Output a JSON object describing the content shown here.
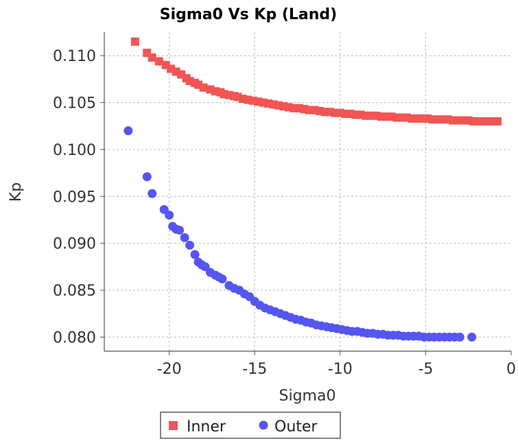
{
  "chart_data": {
    "type": "scatter",
    "title": "Sigma0 Vs Kp (Land)",
    "xlabel": "Sigma0",
    "ylabel": "Kp",
    "xlim": [
      -23.8,
      0
    ],
    "ylim": [
      0.0785,
      0.1125
    ],
    "xticks": [
      -20,
      -15,
      -10,
      -5,
      0
    ],
    "xtick_labels": [
      "-20",
      "-15",
      "-10",
      "-5",
      "0"
    ],
    "yticks": [
      0.08,
      0.085,
      0.09,
      0.095,
      0.1,
      0.105,
      0.11
    ],
    "ytick_labels": [
      "0.080",
      "0.085",
      "0.090",
      "0.095",
      "0.100",
      "0.105",
      "0.110"
    ],
    "grid": true,
    "legend_position": "bottom-center",
    "series": [
      {
        "name": "Inner",
        "marker": "square",
        "color": "#F25454",
        "x": [
          -22.0,
          -21.3,
          -21.0,
          -20.6,
          -20.2,
          -19.9,
          -19.6,
          -19.3,
          -19.0,
          -18.8,
          -18.5,
          -18.3,
          -18.0,
          -17.6,
          -17.3,
          -17.0,
          -16.8,
          -16.5,
          -16.2,
          -16.0,
          -15.7,
          -15.4,
          -15.1,
          -14.8,
          -14.5,
          -14.2,
          -13.9,
          -13.6,
          -13.3,
          -13.0,
          -12.7,
          -12.4,
          -12.1,
          -11.8,
          -11.5,
          -11.2,
          -10.9,
          -10.6,
          -10.3,
          -10.0,
          -9.7,
          -9.4,
          -9.1,
          -8.8,
          -8.5,
          -8.2,
          -7.9,
          -7.6,
          -7.3,
          -7.0,
          -6.7,
          -6.4,
          -6.1,
          -5.8,
          -5.5,
          -5.2,
          -4.9,
          -4.6,
          -4.3,
          -4.0,
          -3.7,
          -3.4,
          -3.1,
          -2.8,
          -2.5,
          -2.2,
          -1.9,
          -1.6,
          -1.3,
          -1.0,
          -0.8
        ],
        "y": [
          0.1115,
          0.1103,
          0.1098,
          0.1094,
          0.109,
          0.1086,
          0.1083,
          0.108,
          0.1076,
          0.1073,
          0.1071,
          0.1069,
          0.1066,
          0.1064,
          0.1062,
          0.1061,
          0.1059,
          0.1058,
          0.1057,
          0.1056,
          0.1054,
          0.1053,
          0.1052,
          0.1051,
          0.105,
          0.1049,
          0.1048,
          0.1047,
          0.1046,
          0.1045,
          0.1044,
          0.1044,
          0.1043,
          0.1042,
          0.1042,
          0.1041,
          0.104,
          0.104,
          0.1039,
          0.1039,
          0.1038,
          0.1038,
          0.1037,
          0.1037,
          0.1036,
          0.1036,
          0.1036,
          0.1035,
          0.1035,
          0.1035,
          0.1034,
          0.1034,
          0.1034,
          0.1033,
          0.1033,
          0.1033,
          0.1033,
          0.1032,
          0.1032,
          0.1032,
          0.1032,
          0.1031,
          0.1031,
          0.1031,
          0.1031,
          0.103,
          0.103,
          0.103,
          0.103,
          0.103,
          0.103
        ]
      },
      {
        "name": "Outer",
        "marker": "circle",
        "color": "#5555F0",
        "x": [
          -22.4,
          -21.3,
          -21.0,
          -20.3,
          -20.0,
          -19.8,
          -19.6,
          -19.4,
          -19.1,
          -18.8,
          -18.5,
          -18.3,
          -18.1,
          -17.9,
          -17.6,
          -17.3,
          -17.1,
          -16.9,
          -16.5,
          -16.2,
          -15.9,
          -15.6,
          -15.3,
          -15.0,
          -14.7,
          -14.4,
          -14.1,
          -13.8,
          -13.5,
          -13.2,
          -12.9,
          -12.6,
          -12.3,
          -12.0,
          -11.7,
          -11.4,
          -11.1,
          -10.8,
          -10.5,
          -10.2,
          -9.9,
          -9.6,
          -9.3,
          -9.0,
          -8.7,
          -8.4,
          -8.1,
          -7.8,
          -7.5,
          -7.2,
          -6.9,
          -6.6,
          -6.3,
          -6.0,
          -5.7,
          -5.4,
          -5.1,
          -4.8,
          -4.5,
          -4.2,
          -3.9,
          -3.6,
          -3.3,
          -3.0,
          -2.3
        ],
        "y": [
          0.102,
          0.0971,
          0.0953,
          0.0936,
          0.093,
          0.0918,
          0.0915,
          0.0914,
          0.0906,
          0.0898,
          0.0888,
          0.088,
          0.0877,
          0.0875,
          0.0869,
          0.0866,
          0.0864,
          0.0862,
          0.0855,
          0.0852,
          0.085,
          0.0846,
          0.0843,
          0.0838,
          0.0834,
          0.0831,
          0.0829,
          0.0827,
          0.0825,
          0.0823,
          0.0821,
          0.0819,
          0.0818,
          0.0816,
          0.0815,
          0.0813,
          0.0812,
          0.0811,
          0.081,
          0.0809,
          0.0808,
          0.0807,
          0.0806,
          0.0806,
          0.0805,
          0.0804,
          0.0804,
          0.0803,
          0.0803,
          0.0802,
          0.0802,
          0.0802,
          0.0801,
          0.0801,
          0.0801,
          0.0801,
          0.08,
          0.08,
          0.08,
          0.08,
          0.08,
          0.08,
          0.08,
          0.08,
          0.08
        ]
      }
    ]
  }
}
